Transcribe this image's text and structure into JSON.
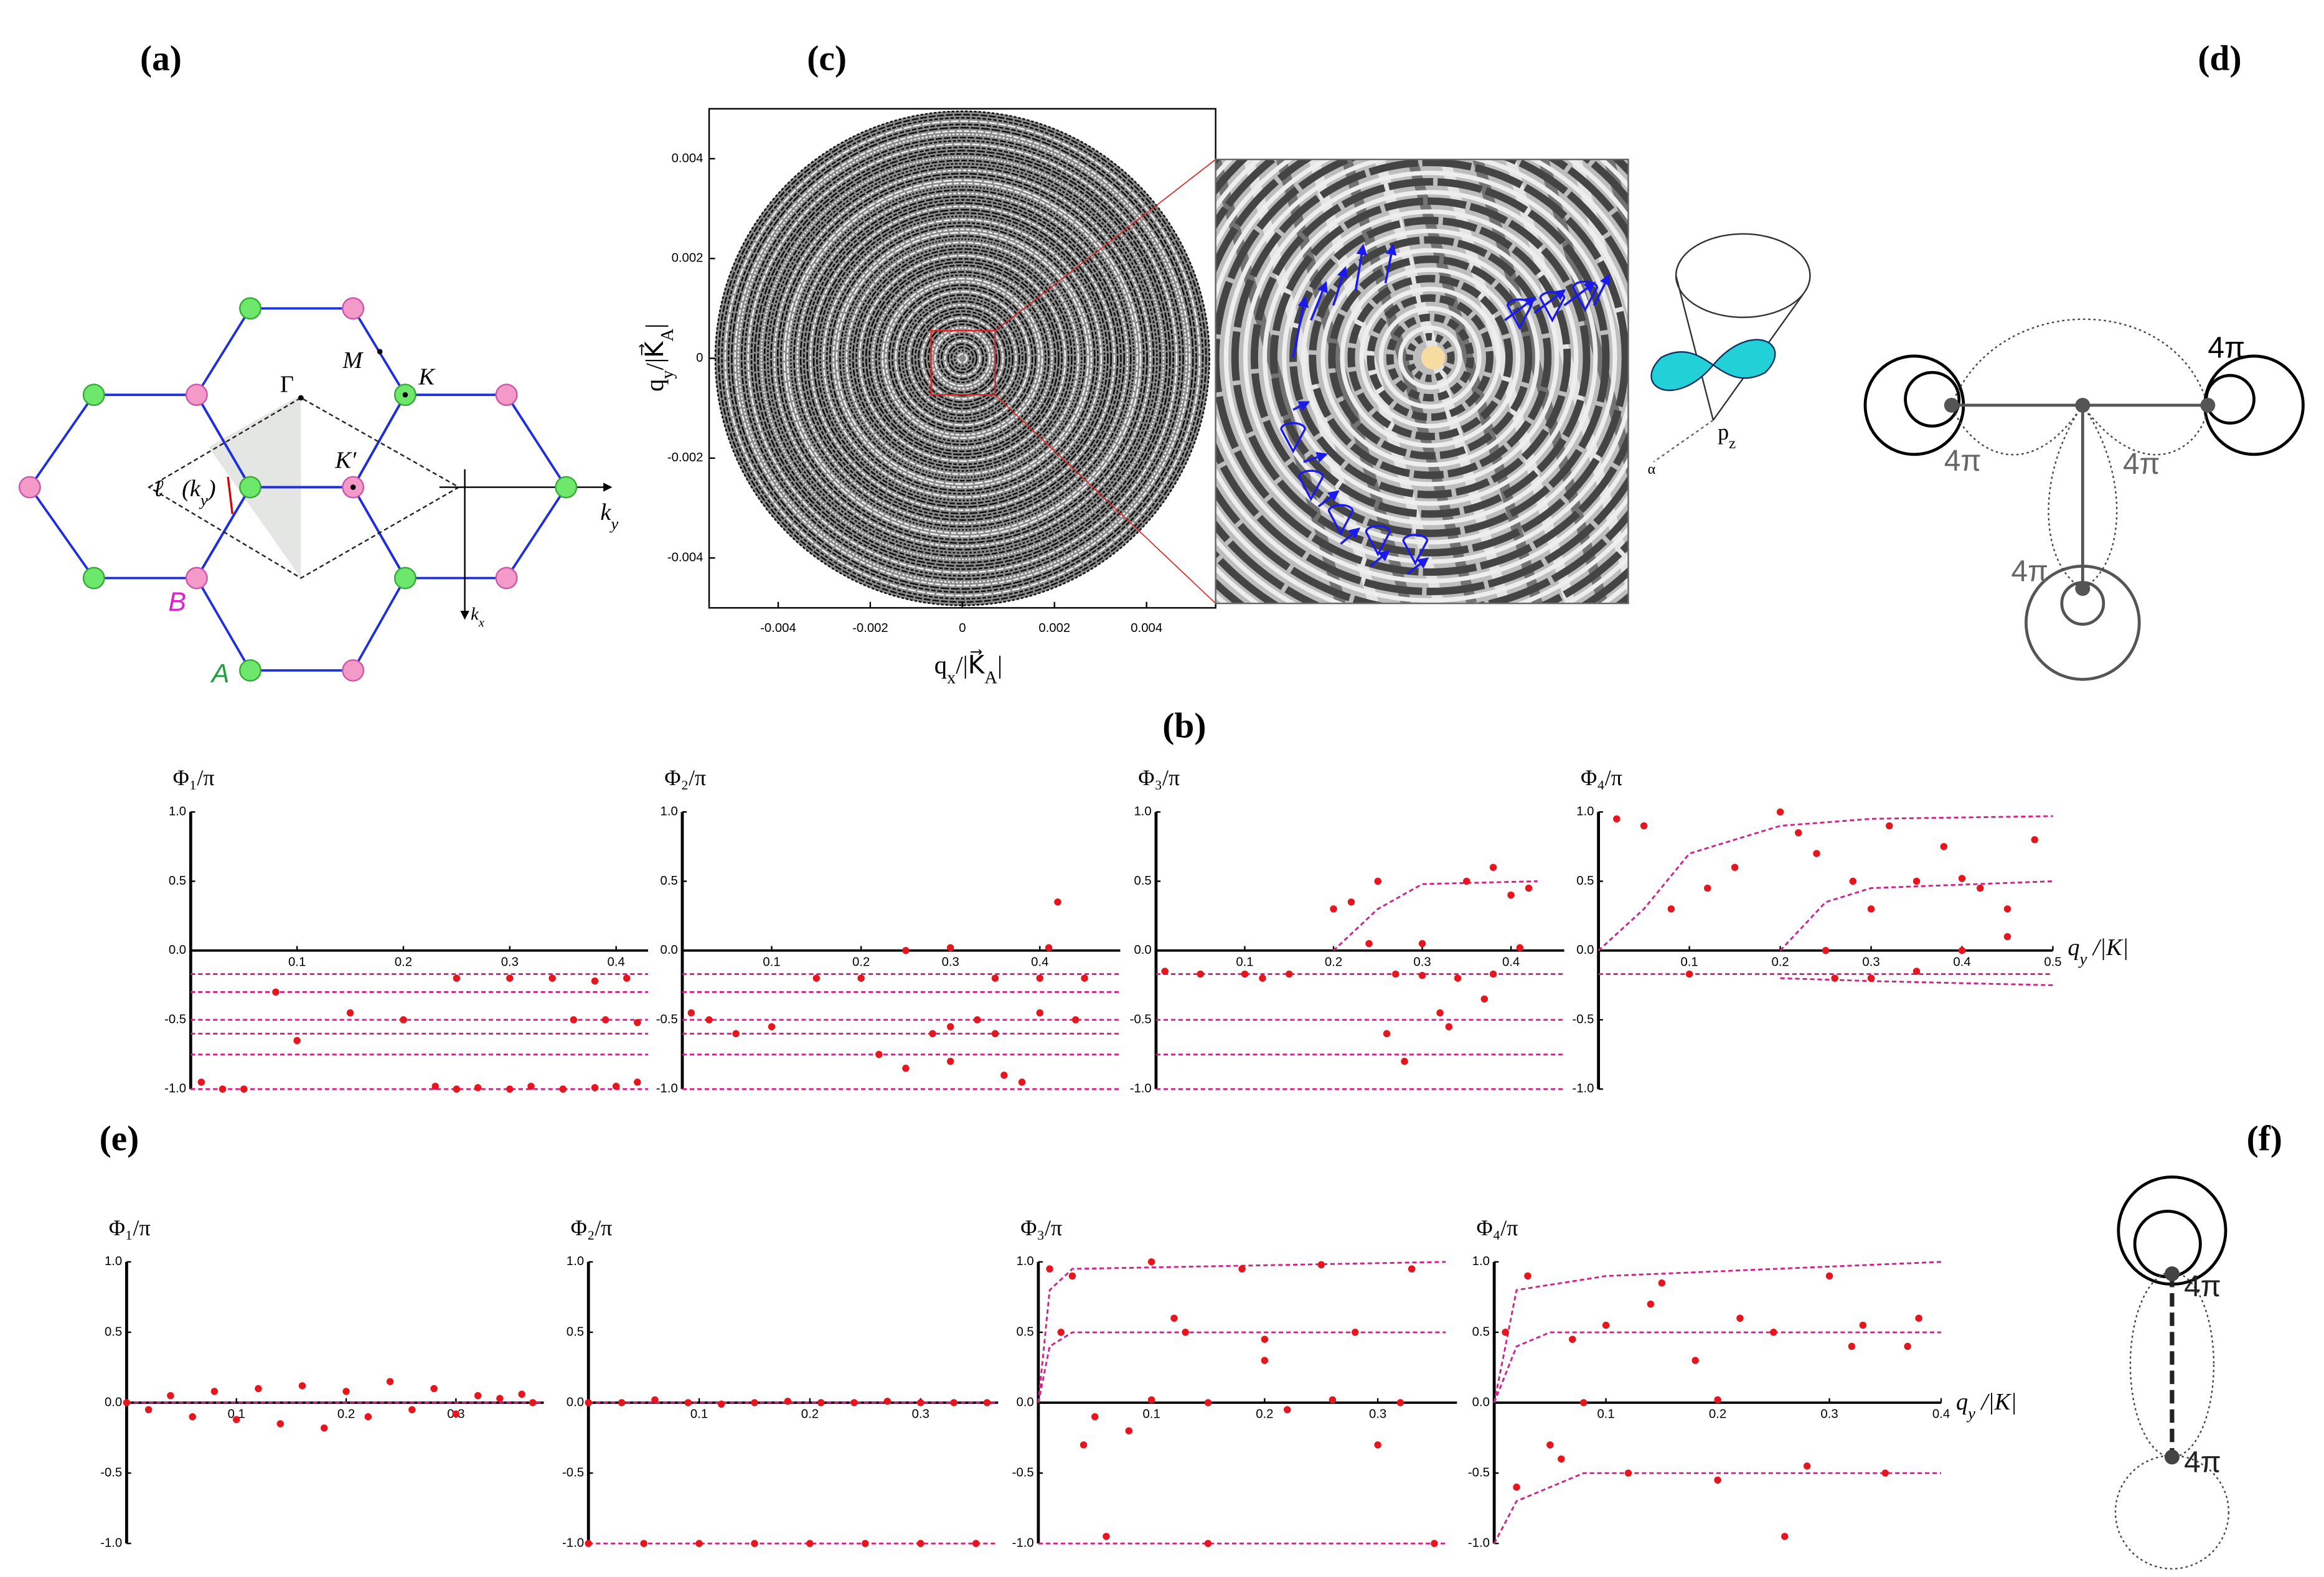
{
  "panel_labels": [
    "(a)",
    "(b)",
    "(c)",
    "(d)",
    "(e)",
    "(f)"
  ],
  "panel_a": {
    "M": "M",
    "K": "K",
    "Gamma": "Γ",
    "Kp": "K′",
    "ell": [
      "ℓ⃗(k",
      "y",
      ")"
    ],
    "ky": [
      "k",
      "y"
    ],
    "kx": [
      "k",
      "x"
    ],
    "B": "B",
    "A": "A"
  },
  "panel_c": {
    "xlabel": [
      "q",
      "x",
      "/|K⃗",
      "A",
      "|"
    ],
    "ylabel": [
      "q",
      "y",
      "/|K⃗",
      "A",
      "|"
    ],
    "xlim": [
      -0.0055,
      0.0055
    ],
    "ylim": [
      -0.005,
      0.005
    ],
    "xticks": [
      -0.004,
      -0.002,
      0,
      0.002,
      0.004
    ],
    "yticks": [
      -0.004,
      -0.002,
      0,
      0.002,
      0.004
    ],
    "orbital": [
      "p",
      "z"
    ],
    "angle": "α"
  },
  "panel_d": {
    "loop_labels": [
      "4π",
      "4π",
      "4π",
      "4π"
    ]
  },
  "panel_f": {
    "loop_labels": [
      "4π",
      "4π"
    ]
  },
  "panel_b": {
    "x_label": [
      "q",
      "y",
      " /|K|"
    ],
    "charts": [
      {
        "type": "scatter",
        "ylabel": "Φ₁/π",
        "xlim": [
          0,
          0.43
        ],
        "ylim": [
          -1,
          1
        ],
        "yticks": [
          {
            "value": 1,
            "label": "1.0"
          },
          0.5,
          {
            "value": 0,
            "label": "0.0"
          },
          -0.5,
          {
            "value": -1,
            "label": "-1.0"
          }
        ],
        "xticks": [
          0.1,
          0.2,
          0.3,
          0.4
        ],
        "curves": [
          {
            "x": [
              0,
              0.43
            ],
            "y": [
              -0.17,
              -0.17
            ]
          },
          {
            "x": [
              0,
              0.43
            ],
            "y": [
              -0.3,
              -0.3
            ]
          },
          {
            "x": [
              0,
              0.43
            ],
            "y": [
              -0.5,
              -0.5
            ]
          },
          {
            "x": [
              0,
              0.43
            ],
            "y": [
              -0.6,
              -0.6
            ]
          },
          {
            "x": [
              0,
              0.43
            ],
            "y": [
              -0.75,
              -0.75
            ]
          },
          {
            "x": [
              0,
              0.43
            ],
            "y": [
              -1,
              -1
            ]
          }
        ],
        "points": {
          "x": [
            0.01,
            0.03,
            0.05,
            0.08,
            0.1,
            0.15,
            0.2,
            0.23,
            0.25,
            0.27,
            0.3,
            0.32,
            0.35,
            0.38,
            0.4,
            0.42,
            0.25,
            0.3,
            0.34,
            0.38,
            0.41,
            0.36,
            0.39,
            0.42
          ],
          "y": [
            -0.95,
            -1,
            -1,
            -0.3,
            -0.65,
            -0.45,
            -0.5,
            -0.98,
            -1,
            -0.99,
            -1,
            -0.98,
            -1,
            -0.99,
            -0.98,
            -0.95,
            -0.2,
            -0.2,
            -0.2,
            -0.22,
            -0.2,
            -0.5,
            -0.5,
            -0.52
          ]
        }
      },
      {
        "type": "scatter",
        "ylabel": "Φ₂/π",
        "xlim": [
          0,
          0.49
        ],
        "ylim": [
          -1,
          1
        ],
        "yticks": [
          {
            "value": 1,
            "label": "1.0"
          },
          0.5,
          {
            "value": 0,
            "label": "0.0"
          },
          -0.5,
          {
            "value": -1,
            "label": "-1.0"
          }
        ],
        "xticks": [
          0.1,
          0.2,
          0.3,
          0.4
        ],
        "curves": [
          {
            "x": [
              0,
              0.49
            ],
            "y": [
              -0.17,
              -0.17
            ]
          },
          {
            "x": [
              0,
              0.49
            ],
            "y": [
              -0.3,
              -0.3
            ]
          },
          {
            "x": [
              0,
              0.49
            ],
            "y": [
              -0.5,
              -0.5
            ]
          },
          {
            "x": [
              0,
              0.49
            ],
            "y": [
              -0.6,
              -0.6
            ]
          },
          {
            "x": [
              0,
              0.49
            ],
            "y": [
              -0.75,
              -0.75
            ]
          },
          {
            "x": [
              0,
              0.49
            ],
            "y": [
              -1,
              -1
            ]
          }
        ],
        "points": {
          "x": [
            0.01,
            0.03,
            0.06,
            0.1,
            0.15,
            0.2,
            0.22,
            0.25,
            0.28,
            0.3,
            0.33,
            0.36,
            0.4,
            0.42,
            0.45,
            0.25,
            0.3,
            0.35,
            0.4,
            0.44,
            0.3,
            0.35,
            0.41,
            0.38
          ],
          "y": [
            -0.45,
            -0.5,
            -0.6,
            -0.55,
            -0.2,
            -0.2,
            -0.75,
            -0.85,
            -0.6,
            -0.55,
            -0.5,
            -0.9,
            -0.45,
            0.35,
            -0.2,
            0,
            0.02,
            -0.2,
            -0.2,
            -0.5,
            -0.8,
            -0.6,
            0.02,
            -0.95
          ]
        }
      },
      {
        "type": "scatter",
        "ylabel": "Φ₃/π",
        "xlim": [
          0,
          0.46
        ],
        "ylim": [
          -1,
          1
        ],
        "yticks": [
          {
            "value": 1,
            "label": "1.0"
          },
          0.5,
          {
            "value": 0,
            "label": "0.0"
          },
          -0.5,
          {
            "value": -1,
            "label": "-1.0"
          }
        ],
        "xticks": [
          0.1,
          0.2,
          0.3,
          0.4
        ],
        "curves": [
          {
            "x": [
              0,
              0.46
            ],
            "y": [
              -0.17,
              -0.17
            ]
          },
          {
            "x": [
              0,
              0.46
            ],
            "y": [
              -0.5,
              -0.5
            ]
          },
          {
            "x": [
              0,
              0.46
            ],
            "y": [
              -0.75,
              -0.75
            ]
          },
          {
            "x": [
              0,
              0.46
            ],
            "y": [
              -1,
              -1
            ]
          },
          {
            "x": [
              0.2,
              0.25,
              0.3,
              0.43
            ],
            "y": [
              0,
              0.3,
              0.48,
              0.5
            ]
          }
        ],
        "points": {
          "x": [
            0.01,
            0.05,
            0.1,
            0.12,
            0.15,
            0.2,
            0.22,
            0.24,
            0.25,
            0.27,
            0.3,
            0.32,
            0.35,
            0.38,
            0.4,
            0.42,
            0.26,
            0.3,
            0.34,
            0.38,
            0.41,
            0.28,
            0.33,
            0.37
          ],
          "y": [
            -0.15,
            -0.17,
            -0.17,
            -0.2,
            -0.17,
            0.3,
            0.35,
            0.05,
            0.5,
            -0.17,
            0.05,
            -0.45,
            0.5,
            0.6,
            0.4,
            0.45,
            -0.6,
            -0.18,
            -0.2,
            -0.17,
            0.02,
            -0.8,
            -0.55,
            -0.35
          ]
        }
      },
      {
        "type": "scatter",
        "ylabel": "Φ₄/π",
        "xlim": [
          0,
          0.5
        ],
        "ylim": [
          -1,
          1
        ],
        "yticks": [
          {
            "value": 1,
            "label": "1.0"
          },
          0.5,
          {
            "value": 0,
            "label": "0.0"
          },
          -0.5,
          {
            "value": -1,
            "label": "-1.0"
          }
        ],
        "xticks": [
          0.1,
          0.2,
          0.3,
          0.4,
          0.5
        ],
        "curves": [
          {
            "x": [
              0,
              0.05,
              0.1,
              0.2,
              0.3,
              0.5
            ],
            "y": [
              0,
              0.3,
              0.7,
              0.9,
              0.95,
              0.97
            ]
          },
          {
            "x": [
              0.2,
              0.25,
              0.3,
              0.5
            ],
            "y": [
              0,
              0.35,
              0.45,
              0.5
            ]
          },
          {
            "x": [
              0,
              0.5
            ],
            "y": [
              -0.17,
              -0.17
            ]
          },
          {
            "x": [
              0.2,
              0.3,
              0.5
            ],
            "y": [
              -0.2,
              -0.22,
              -0.25
            ]
          }
        ],
        "points": {
          "x": [
            0.02,
            0.05,
            0.08,
            0.1,
            0.15,
            0.2,
            0.22,
            0.24,
            0.26,
            0.28,
            0.3,
            0.32,
            0.35,
            0.38,
            0.4,
            0.42,
            0.45,
            0.48,
            0.25,
            0.3,
            0.35,
            0.4,
            0.45,
            0.12
          ],
          "y": [
            0.95,
            0.9,
            0.3,
            -0.17,
            0.6,
            1,
            0.85,
            0.7,
            -0.2,
            0.5,
            0.3,
            0.9,
            0.5,
            0.75,
            0.52,
            0.45,
            0.1,
            0.8,
            0,
            -0.2,
            -0.15,
            0,
            0.3,
            0.45
          ]
        }
      }
    ]
  },
  "panel_e": {
    "x_label": [
      "q",
      "y",
      " /|K|"
    ],
    "charts": [
      {
        "type": "scatter",
        "ylabel": "Φ₁/π",
        "xlim": [
          0,
          0.38
        ],
        "ylim": [
          -1,
          1
        ],
        "yticks": [
          {
            "value": 1,
            "label": "1.0"
          },
          0.5,
          {
            "value": 0,
            "label": "0.0"
          },
          -0.5,
          {
            "value": -1,
            "label": "-1.0"
          }
        ],
        "xticks": [
          0.1,
          0.2,
          0.3
        ],
        "curves": [
          {
            "x": [
              0,
              0.38
            ],
            "y": [
              0,
              0
            ]
          }
        ],
        "points": {
          "x": [
            0,
            0.02,
            0.04,
            0.06,
            0.08,
            0.1,
            0.12,
            0.14,
            0.16,
            0.18,
            0.2,
            0.22,
            0.24,
            0.26,
            0.28,
            0.3,
            0.32,
            0.34,
            0.36,
            0.37
          ],
          "y": [
            0,
            -0.05,
            0.05,
            -0.1,
            0.08,
            -0.12,
            0.1,
            -0.15,
            0.12,
            -0.18,
            0.08,
            -0.1,
            0.15,
            -0.05,
            0.1,
            -0.08,
            0.05,
            0.03,
            0.06,
            0
          ]
        }
      },
      {
        "type": "scatter",
        "ylabel": "Φ₂/π",
        "xlim": [
          0,
          0.37
        ],
        "ylim": [
          -1,
          1
        ],
        "yticks": [
          {
            "value": 1,
            "label": "1.0"
          },
          0.5,
          {
            "value": 0,
            "label": "0.0"
          },
          -0.5,
          {
            "value": -1,
            "label": "-1.0"
          }
        ],
        "xticks": [
          0.1,
          0.2,
          0.3
        ],
        "curves": [
          {
            "x": [
              0,
              0.37
            ],
            "y": [
              0,
              0
            ]
          },
          {
            "x": [
              0,
              0.37
            ],
            "y": [
              -1,
              -1
            ]
          }
        ],
        "points": {
          "x": [
            0,
            0.03,
            0.06,
            0.09,
            0.12,
            0.15,
            0.18,
            0.21,
            0.24,
            0.27,
            0.3,
            0.33,
            0.36,
            0,
            0.05,
            0.1,
            0.15,
            0.2,
            0.25,
            0.3,
            0.35
          ],
          "y": [
            0,
            0,
            0.02,
            0,
            -0.01,
            0,
            0.01,
            0,
            0,
            0.01,
            0,
            0,
            0,
            -1,
            -1,
            -1,
            -1,
            -1,
            -1,
            -1,
            -1
          ]
        }
      },
      {
        "type": "scatter",
        "ylabel": "Φ₃/π",
        "xlim": [
          0,
          0.37
        ],
        "ylim": [
          -1,
          1
        ],
        "yticks": [
          {
            "value": 1,
            "label": "1.0"
          },
          0.5,
          {
            "value": 0,
            "label": "0.0"
          },
          -0.5,
          {
            "value": -1,
            "label": "-1.0"
          }
        ],
        "xticks": [
          0.1,
          0.2,
          0.3
        ],
        "curves": [
          {
            "x": [
              0,
              0.01,
              0.03,
              0.36
            ],
            "y": [
              0,
              0.8,
              0.95,
              1
            ]
          },
          {
            "x": [
              0,
              0.01,
              0.03,
              0.36
            ],
            "y": [
              0,
              0.4,
              0.5,
              0.5
            ]
          },
          {
            "x": [
              0,
              0.36
            ],
            "y": [
              -1,
              -1
            ]
          }
        ],
        "points": {
          "x": [
            0.01,
            0.03,
            0.05,
            0.08,
            0.1,
            0.13,
            0.15,
            0.18,
            0.2,
            0.22,
            0.25,
            0.28,
            0.3,
            0.32,
            0.35,
            0.02,
            0.06,
            0.1,
            0.15,
            0.2,
            0.26,
            0.33,
            0.04,
            0.12
          ],
          "y": [
            0.95,
            0.9,
            -0.1,
            -0.2,
            1,
            0.5,
            -1,
            0.95,
            0.3,
            -0.05,
            0.98,
            0.5,
            -0.3,
            0,
            -1,
            0.5,
            -0.95,
            0.02,
            0,
            0.45,
            0.02,
            0.95,
            -0.3,
            0.6
          ]
        }
      },
      {
        "type": "scatter",
        "ylabel": "Φ₄/π",
        "xlim": [
          0,
          0.4
        ],
        "ylim": [
          -1,
          1
        ],
        "yticks": [
          {
            "value": 1,
            "label": "1.0"
          },
          0.5,
          {
            "value": 0,
            "label": "0.0"
          },
          -0.5,
          {
            "value": -1,
            "label": "-1.0"
          }
        ],
        "xticks": [
          0.1,
          0.2,
          0.3,
          0.4
        ],
        "curves": [
          {
            "x": [
              0,
              0.02,
              0.1,
              0.4
            ],
            "y": [
              0,
              0.8,
              0.9,
              1
            ]
          },
          {
            "x": [
              0,
              0.02,
              0.05,
              0.4
            ],
            "y": [
              0,
              0.4,
              0.5,
              0.5
            ]
          },
          {
            "x": [
              0,
              0.02,
              0.08,
              0.4
            ],
            "y": [
              -1,
              -0.7,
              -0.5,
              -0.5
            ]
          }
        ],
        "points": {
          "x": [
            0.01,
            0.03,
            0.05,
            0.07,
            0.1,
            0.12,
            0.15,
            0.18,
            0.2,
            0.22,
            0.25,
            0.28,
            0.3,
            0.32,
            0.35,
            0.38,
            0.02,
            0.08,
            0.14,
            0.2,
            0.26,
            0.33,
            0.37,
            0.06
          ],
          "y": [
            0.5,
            0.9,
            -0.3,
            0.45,
            0.55,
            -0.5,
            0.85,
            0.3,
            -0.55,
            0.6,
            0.5,
            -0.45,
            0.9,
            0.4,
            -0.5,
            0.6,
            -0.6,
            0,
            0.7,
            0.02,
            -0.95,
            0.55,
            0.4,
            -0.4
          ]
        }
      }
    ]
  }
}
